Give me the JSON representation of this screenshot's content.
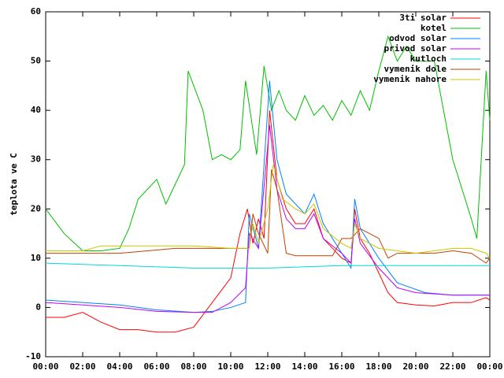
{
  "chart_data": {
    "type": "line",
    "ylabel": "teplota ve C",
    "xlim": [
      0,
      24
    ],
    "xticks": [
      {
        "value": 0,
        "label": "00:00"
      },
      {
        "value": 2,
        "label": "02:00"
      },
      {
        "value": 4,
        "label": "04:00"
      },
      {
        "value": 6,
        "label": "06:00"
      },
      {
        "value": 8,
        "label": "08:00"
      },
      {
        "value": 10,
        "label": "10:00"
      },
      {
        "value": 12,
        "label": "12:00"
      },
      {
        "value": 14,
        "label": "14:00"
      },
      {
        "value": 16,
        "label": "16:00"
      },
      {
        "value": 18,
        "label": "18:00"
      },
      {
        "value": 20,
        "label": "20:00"
      },
      {
        "value": 22,
        "label": "22:00"
      },
      {
        "value": 24,
        "label": "00:00"
      }
    ],
    "ylim": [
      -10,
      60
    ],
    "yticks": [
      -10,
      0,
      10,
      20,
      30,
      40,
      50,
      60
    ],
    "legend": "top-right",
    "series": [
      {
        "name": "3ti solar",
        "color": "#ff0000",
        "x": [
          0,
          1,
          2,
          3,
          4,
          5,
          6,
          7,
          8,
          8.8,
          10,
          10.5,
          10.9,
          11.2,
          11.5,
          11.8,
          12.1,
          12.5,
          13,
          13.5,
          14,
          14.5,
          15,
          15.5,
          16,
          16.5,
          16.7,
          17,
          17.5,
          18,
          18.5,
          19,
          20,
          21,
          22,
          23,
          23.8,
          24
        ],
        "values": [
          -2,
          -2,
          -1,
          -3,
          -4.5,
          -4.5,
          -5,
          -5,
          -4,
          0,
          6,
          15,
          20,
          13,
          18,
          14,
          40,
          26,
          20,
          17,
          17,
          20,
          14,
          12,
          10,
          9,
          20,
          14,
          11,
          7,
          3,
          1,
          0.5,
          0.3,
          1,
          1,
          2,
          1.5
        ]
      },
      {
        "name": "kotel",
        "color": "#00c000",
        "x": [
          0,
          1,
          2,
          3,
          4,
          4.5,
          5,
          6,
          6.5,
          7,
          7.5,
          7.7,
          8.5,
          9,
          9.5,
          10,
          10.5,
          10.8,
          11.4,
          11.8,
          12.2,
          12.6,
          13,
          13.5,
          14,
          14.5,
          15,
          15.5,
          16,
          16.5,
          17,
          17.5,
          18,
          18.5,
          19,
          19.5,
          20,
          21,
          22,
          23,
          23.3,
          23.8,
          24
        ],
        "values": [
          20,
          15,
          11.5,
          11.5,
          12,
          16,
          22,
          26,
          21,
          25,
          29,
          48,
          40,
          30,
          31,
          30,
          32,
          46,
          31,
          49,
          40,
          44,
          40,
          38,
          43,
          39,
          41,
          38,
          42,
          39,
          44,
          40,
          48,
          55,
          50,
          53,
          50,
          50,
          30,
          18,
          14,
          48,
          38
        ]
      },
      {
        "name": "odvod solar",
        "color": "#0080ff",
        "x": [
          0,
          2,
          4,
          6,
          8,
          9,
          10,
          10.8,
          11,
          11.5,
          12.1,
          12.5,
          13,
          14,
          14.5,
          15,
          16,
          16.5,
          16.7,
          17,
          18,
          19,
          20.5,
          22,
          24
        ],
        "values": [
          1.5,
          1,
          0.5,
          -0.5,
          -1,
          -0.8,
          0,
          1,
          19,
          12,
          46,
          30,
          23,
          19,
          23,
          17,
          11,
          8,
          22,
          16,
          10,
          5,
          3,
          2.5,
          2.5
        ]
      },
      {
        "name": "privod solar",
        "color": "#c000ff",
        "x": [
          0,
          2,
          4,
          6,
          8,
          9,
          10,
          10.8,
          11,
          11.5,
          12.1,
          12.5,
          13,
          13.5,
          14,
          14.5,
          15,
          16,
          16.5,
          16.7,
          17,
          18,
          19,
          20,
          22,
          24
        ],
        "values": [
          1,
          0.5,
          0,
          -0.8,
          -1,
          -1,
          1,
          4,
          15,
          12,
          37,
          24,
          18,
          16,
          16,
          19,
          14,
          11,
          9,
          18,
          13,
          8,
          4,
          3,
          2.5,
          2.5
        ]
      },
      {
        "name": "kutloch",
        "color": "#00d8d8",
        "x": [
          0,
          4,
          8,
          12,
          16,
          20,
          24
        ],
        "values": [
          9,
          8.5,
          8,
          8,
          8.5,
          8.5,
          8.5
        ]
      },
      {
        "name": "vymenik dole",
        "color": "#c04000",
        "x": [
          0,
          4,
          7,
          10,
          11,
          11.2,
          11.5,
          12,
          12.2,
          12.5,
          13,
          13.5,
          14,
          15.5,
          16,
          16.5,
          17,
          17.5,
          18,
          18.5,
          19,
          20,
          21,
          22,
          23,
          23.8,
          24
        ],
        "values": [
          11,
          11,
          12,
          12,
          12,
          19,
          15,
          11,
          28,
          24,
          11,
          10.5,
          10.5,
          10.5,
          14,
          14,
          16,
          15,
          14,
          10,
          11,
          11,
          11,
          11.5,
          11,
          9,
          10
        ]
      },
      {
        "name": "vymenik nahore",
        "color": "#c8c800",
        "x": [
          0,
          2,
          3,
          5,
          8,
          10,
          11,
          11.2,
          11.5,
          12,
          12.3,
          12.8,
          13.5,
          14,
          14.5,
          15,
          16,
          16.5,
          16.7,
          17,
          18,
          19,
          20,
          21,
          22,
          23,
          23.8,
          24
        ],
        "values": [
          11.5,
          11.5,
          12.5,
          12.5,
          12.5,
          12,
          12,
          17,
          13,
          20,
          29,
          22,
          20,
          19,
          21,
          16,
          13,
          12,
          17,
          14,
          12,
          11.5,
          11,
          11.5,
          12,
          12,
          11,
          10
        ]
      }
    ]
  }
}
